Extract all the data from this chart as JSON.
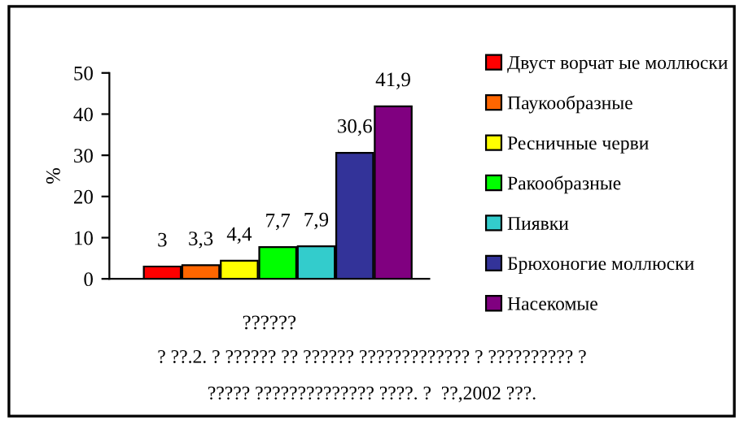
{
  "chart_data": {
    "type": "bar",
    "ylabel": "%",
    "xlabel": "??????",
    "categories": [
      null
    ],
    "series": [
      {
        "name": "Двуст ворчат ые моллюски",
        "color": "#ff0000",
        "values": [
          3
        ],
        "value_labels": [
          "3"
        ]
      },
      {
        "name": "Паукообразные",
        "color": "#ff6600",
        "values": [
          3.3
        ],
        "value_labels": [
          "3,3"
        ]
      },
      {
        "name": "Ресничные черви",
        "color": "#ffff00",
        "values": [
          4.4
        ],
        "value_labels": [
          "4,4"
        ]
      },
      {
        "name": "Ракообразные",
        "color": "#00ff00",
        "values": [
          7.7
        ],
        "value_labels": [
          "7,7"
        ]
      },
      {
        "name": "Пиявки",
        "color": "#33cccc",
        "values": [
          7.9
        ],
        "value_labels": [
          "7,9"
        ]
      },
      {
        "name": "Брюхоногие моллюски",
        "color": "#333399",
        "values": [
          30.6
        ],
        "value_labels": [
          "30,6"
        ]
      },
      {
        "name": "Насекомые",
        "color": "#800080",
        "values": [
          41.9
        ],
        "value_labels": [
          "41,9"
        ]
      }
    ],
    "ylim": [
      0,
      50
    ],
    "yticks": [
      0,
      10,
      20,
      30,
      40,
      50
    ],
    "grid": false,
    "legend": "right",
    "annotations": [
      "? ??.2. ? ?????? ?? ?????? ????????????? ? ?????????? ?",
      "????? ?????????????? ????. ?  ??,2002 ???."
    ]
  }
}
